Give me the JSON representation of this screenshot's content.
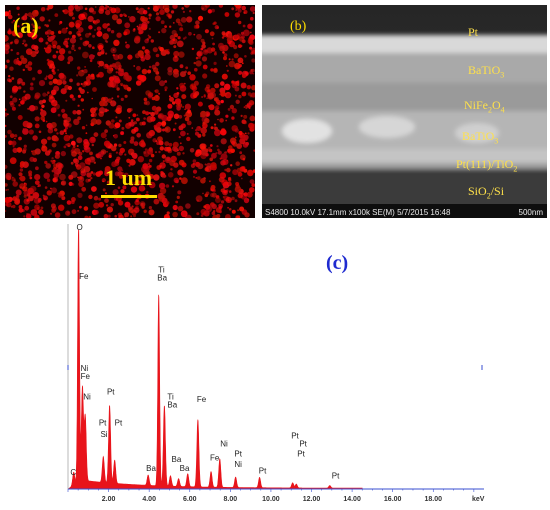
{
  "panel_a": {
    "label": "(a)",
    "scale": "1 um"
  },
  "panel_b": {
    "label": "(b)",
    "layers": [
      {
        "text": "Pt"
      },
      {
        "text": "BaTiO",
        "sub": "3"
      },
      {
        "text": "NiFe",
        "sub": "2",
        "text2": "O",
        "sub2": "4"
      },
      {
        "text": "BaTiO",
        "sub": "3"
      },
      {
        "text": "Pt(111)/TiO",
        "sub": "2"
      },
      {
        "text": "SiO",
        "sub": "2",
        "text2": "/Si"
      }
    ],
    "footer_left": "S4800 10.0kV 17.1mm x100k SE(M) 5/7/2015 16:48",
    "footer_right": "500nm"
  },
  "panel_c": {
    "label": "(c)"
  },
  "chart_data": {
    "type": "line",
    "xlabel": "keV",
    "x_ticks": [
      "2.00",
      "4.00",
      "6.00",
      "8.00",
      "10.00",
      "12.00",
      "14.00",
      "16.00",
      "18.00"
    ],
    "xlim": [
      0,
      20.5
    ],
    "series_color": "#e8141b",
    "peaks": [
      {
        "x": 0.28,
        "h": 0.05
      },
      {
        "x": 0.52,
        "h": 1.0
      },
      {
        "x": 0.71,
        "h": 0.36
      },
      {
        "x": 0.85,
        "h": 0.25
      },
      {
        "x": 1.74,
        "h": 0.1
      },
      {
        "x": 2.05,
        "h": 0.3
      },
      {
        "x": 2.3,
        "h": 0.09
      },
      {
        "x": 3.95,
        "h": 0.04
      },
      {
        "x": 4.47,
        "h": 0.74
      },
      {
        "x": 4.75,
        "h": 0.31
      },
      {
        "x": 5.05,
        "h": 0.04
      },
      {
        "x": 5.45,
        "h": 0.03
      },
      {
        "x": 5.9,
        "h": 0.05
      },
      {
        "x": 6.4,
        "h": 0.26
      },
      {
        "x": 7.05,
        "h": 0.06
      },
      {
        "x": 7.48,
        "h": 0.11
      },
      {
        "x": 8.26,
        "h": 0.04
      },
      {
        "x": 9.44,
        "h": 0.04
      },
      {
        "x": 11.07,
        "h": 0.02
      },
      {
        "x": 11.25,
        "h": 0.015
      },
      {
        "x": 12.9,
        "h": 0.01
      }
    ],
    "peak_labels": [
      {
        "text": "O",
        "x": 0.42,
        "h": 1.0
      },
      {
        "text": "Fe",
        "x": 0.55,
        "h": 0.81
      },
      {
        "text": "Ni",
        "x": 0.62,
        "h": 0.455
      },
      {
        "text": "Fe",
        "x": 0.62,
        "h": 0.425
      },
      {
        "text": "C",
        "x": 0.12,
        "h": 0.055
      },
      {
        "text": "Ni",
        "x": 0.75,
        "h": 0.345
      },
      {
        "text": "Pt",
        "x": 1.92,
        "h": 0.365
      },
      {
        "text": "Pt",
        "x": 1.52,
        "h": 0.245
      },
      {
        "text": "Si",
        "x": 1.6,
        "h": 0.2
      },
      {
        "text": "Pt",
        "x": 2.3,
        "h": 0.245
      },
      {
        "text": "Ti",
        "x": 4.45,
        "h": 0.835
      },
      {
        "text": "Ba",
        "x": 4.4,
        "h": 0.805
      },
      {
        "text": "Ti",
        "x": 4.9,
        "h": 0.345
      },
      {
        "text": "Ba",
        "x": 4.9,
        "h": 0.315
      },
      {
        "text": "Ba",
        "x": 3.85,
        "h": 0.07
      },
      {
        "text": "Ba",
        "x": 5.1,
        "h": 0.105
      },
      {
        "text": "Ba",
        "x": 5.5,
        "h": 0.07
      },
      {
        "text": "Fe",
        "x": 6.35,
        "h": 0.335
      },
      {
        "text": "Fe",
        "x": 7.0,
        "h": 0.11
      },
      {
        "text": "Ni",
        "x": 7.5,
        "h": 0.165
      },
      {
        "text": "Pt",
        "x": 8.2,
        "h": 0.125
      },
      {
        "text": "Ni",
        "x": 8.2,
        "h": 0.085
      },
      {
        "text": "Pt",
        "x": 9.4,
        "h": 0.06
      },
      {
        "text": "Pt",
        "x": 11.0,
        "h": 0.195
      },
      {
        "text": "Pt",
        "x": 11.4,
        "h": 0.165
      },
      {
        "text": "Pt",
        "x": 11.3,
        "h": 0.125
      },
      {
        "text": "Pt",
        "x": 13.0,
        "h": 0.04
      }
    ]
  }
}
